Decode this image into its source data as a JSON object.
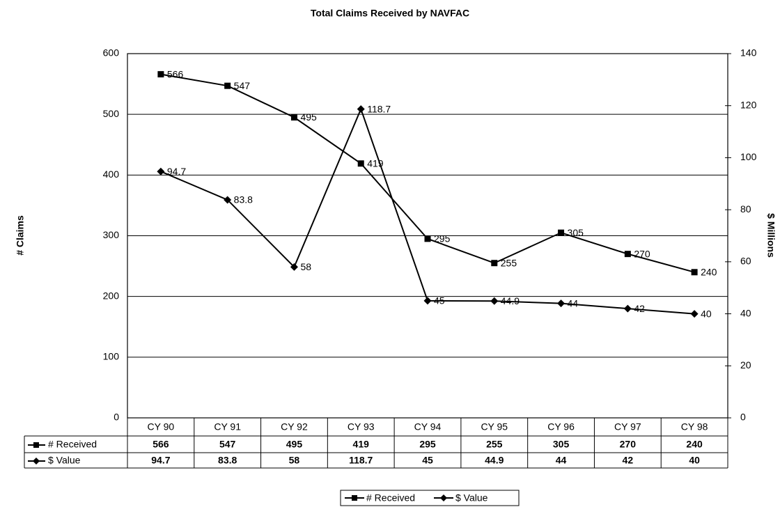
{
  "chart_data": {
    "type": "line",
    "title": "Total Claims Received by NAVFAC",
    "ylabel": "# Claims",
    "y2label": "$ Millions",
    "categories": [
      "CY 90",
      "CY 91",
      "CY 92",
      "CY 93",
      "CY 94",
      "CY 95",
      "CY 96",
      "CY 97",
      "CY 98"
    ],
    "series": [
      {
        "name": "# Received",
        "color": "#000000",
        "marker": "square",
        "values": [
          566,
          547,
          495,
          419,
          295,
          255,
          305,
          270,
          240
        ]
      },
      {
        "name": "$ Value",
        "color": "#000000",
        "marker": "diamond",
        "axis": "y2",
        "values": [
          94.7,
          83.8,
          58,
          118.7,
          45,
          44.9,
          44,
          42,
          40
        ]
      }
    ],
    "ylim": [
      0,
      600
    ],
    "yticks": [
      0,
      100,
      200,
      300,
      400,
      500,
      600
    ],
    "y2lim": [
      0,
      140
    ],
    "y2ticks": [
      0,
      20,
      40,
      60,
      80,
      100,
      120,
      140
    ],
    "grid": true,
    "legend": "bottom",
    "data_table": true
  }
}
